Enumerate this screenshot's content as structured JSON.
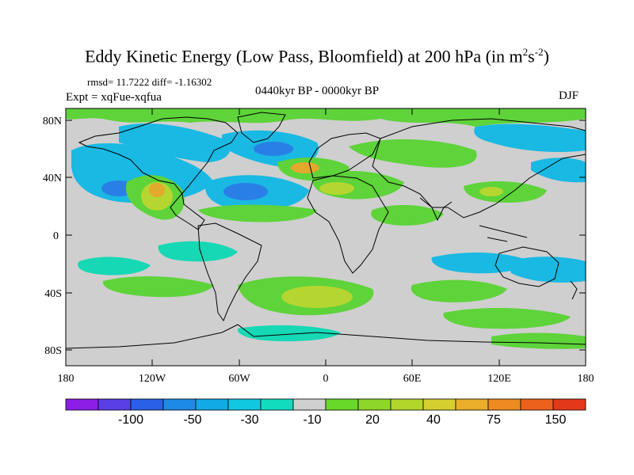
{
  "title": {
    "main": "Eddy Kinetic Energy (Low Pass, Bloomfield) at 200 hPa (in m",
    "sup1": "2",
    "mid": "s",
    "sup2": "-2",
    "end": ")"
  },
  "stats": "rmsd= 11.7222  diff= -1.16302",
  "experiment": "Expt = xqFue-xqfua",
  "period": "0440kyr BP - 0000kyr BP",
  "season": "DJF",
  "axes": {
    "lat_labels": [
      "80N",
      "40N",
      "0",
      "40S",
      "80S"
    ],
    "lon_labels": [
      "180",
      "120W",
      "60W",
      "0",
      "60E",
      "120E",
      "180"
    ]
  },
  "colorbar": {
    "colors": [
      "#8c1ee6",
      "#5a3ee6",
      "#2a60e6",
      "#1c8ae6",
      "#12aae6",
      "#10c8e0",
      "#12dcbe",
      "#cfcfcf",
      "#6ad82a",
      "#8ed62a",
      "#b2d62a",
      "#d6cf30",
      "#eaae2a",
      "#ee8a22",
      "#ec621c",
      "#e4381a"
    ],
    "labels": [
      "-100",
      "-50",
      "-30",
      "-10",
      "20",
      "40",
      "75",
      "150"
    ]
  },
  "map_colors": {
    "land_bg": "#cfcfcf",
    "pos_light": "#5ed33a",
    "pos_mid": "#b5d630",
    "pos_high": "#e3a82c",
    "pos_peak": "#e8602a",
    "neg_light": "#17d8b4",
    "neg_mid": "#19b9e3",
    "neg_deep": "#2a7fe6"
  }
}
